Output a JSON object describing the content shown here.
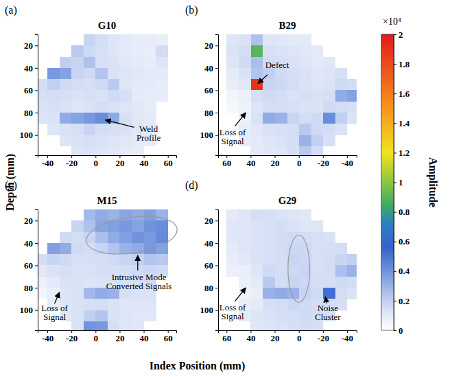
{
  "chart_data": [
    {
      "type": "heatmap",
      "label": "(a)",
      "title": "G10",
      "x": [
        -45,
        -35,
        -25,
        -15,
        -5,
        5,
        15,
        25,
        35,
        45,
        55,
        65
      ],
      "y": [
        15,
        25,
        35,
        45,
        55,
        65,
        75,
        85,
        95,
        105,
        115
      ],
      "values": [
        [
          null,
          null,
          null,
          null,
          1800,
          1500,
          1200,
          1000,
          900,
          900,
          800,
          null
        ],
        [
          null,
          null,
          null,
          2200,
          1600,
          1400,
          1200,
          1000,
          900,
          800,
          1500,
          null
        ],
        [
          null,
          null,
          2000,
          1800,
          2500,
          1400,
          1300,
          1100,
          1000,
          900,
          1200,
          null
        ],
        [
          null,
          3800,
          3500,
          1800,
          1600,
          2400,
          1300,
          1200,
          1100,
          1000,
          1000,
          null
        ],
        [
          1500,
          2000,
          1600,
          1500,
          1400,
          1600,
          2200,
          1200,
          1000,
          1000,
          900,
          null
        ],
        [
          1400,
          1500,
          1400,
          1300,
          1400,
          1300,
          1600,
          1400,
          1000,
          900,
          900,
          null
        ],
        [
          1300,
          1400,
          1300,
          1200,
          1300,
          1500,
          1300,
          1200,
          1100,
          900,
          null,
          null
        ],
        [
          1200,
          1300,
          3200,
          3500,
          3800,
          4200,
          3300,
          1400,
          1100,
          1000,
          null,
          null
        ],
        [
          null,
          1200,
          1300,
          1400,
          1800,
          1500,
          1400,
          1300,
          1100,
          1000,
          null,
          null
        ],
        [
          null,
          null,
          1200,
          1300,
          1400,
          1300,
          1200,
          1100,
          1000,
          900,
          null,
          null
        ],
        [
          null,
          null,
          null,
          1200,
          1300,
          1200,
          1100,
          1000,
          900,
          null,
          null,
          null
        ]
      ],
      "xlim": [
        -48,
        67
      ],
      "ylim": [
        10,
        118
      ],
      "xticks": [
        -40,
        -20,
        0,
        20,
        40,
        60
      ],
      "yticks": [
        20,
        40,
        60,
        80,
        100
      ],
      "annotations": [
        "Weld Profile"
      ]
    },
    {
      "type": "heatmap",
      "label": "(b)",
      "title": "B29",
      "x": [
        -45,
        -35,
        -25,
        -15,
        -5,
        5,
        15,
        25,
        35,
        45,
        55,
        65
      ],
      "y": [
        15,
        25,
        35,
        45,
        55,
        65,
        75,
        85,
        95,
        105,
        115
      ],
      "values": [
        [
          null,
          null,
          null,
          null,
          1000,
          1000,
          1100,
          1200,
          2500,
          1300,
          1200,
          null
        ],
        [
          null,
          null,
          null,
          1000,
          1100,
          1200,
          1300,
          1400,
          9000,
          1500,
          1300,
          null
        ],
        [
          null,
          null,
          1100,
          1000,
          1200,
          1300,
          1400,
          1500,
          2600,
          1600,
          1200,
          null
        ],
        [
          null,
          1400,
          1200,
          1100,
          1300,
          1400,
          1600,
          2000,
          2400,
          1300,
          1000,
          null
        ],
        [
          1500,
          1600,
          1300,
          1200,
          1300,
          1500,
          1700,
          1800,
          19000,
          1100,
          800,
          null
        ],
        [
          3500,
          3200,
          1400,
          1300,
          1400,
          1300,
          1500,
          1600,
          1400,
          700,
          500,
          null
        ],
        [
          1400,
          1500,
          1600,
          1300,
          1300,
          1400,
          1500,
          1500,
          1200,
          600,
          400,
          null
        ],
        [
          1300,
          2000,
          4200,
          1600,
          1500,
          1800,
          3000,
          3200,
          1300,
          700,
          null,
          null
        ],
        [
          null,
          1300,
          1500,
          1600,
          2200,
          1500,
          1400,
          1300,
          1100,
          900,
          null,
          null
        ],
        [
          null,
          null,
          1400,
          2000,
          3000,
          1500,
          1300,
          1200,
          1000,
          900,
          null,
          null
        ],
        [
          null,
          null,
          null,
          1500,
          2200,
          1400,
          1200,
          1100,
          1000,
          null,
          null,
          null
        ]
      ],
      "xlim": [
        67,
        -48
      ],
      "ylim": [
        10,
        118
      ],
      "xticks": [
        60,
        40,
        20,
        0,
        -20,
        -40
      ],
      "yticks": [
        20,
        40,
        60,
        80,
        100
      ],
      "annotations": [
        "Defect",
        "Loss of Signal"
      ]
    },
    {
      "type": "heatmap",
      "label": "(c)",
      "title": "M15",
      "x": [
        -45,
        -35,
        -25,
        -15,
        -5,
        5,
        15,
        25,
        35,
        45,
        55,
        65
      ],
      "y": [
        15,
        25,
        35,
        45,
        55,
        65,
        75,
        85,
        95,
        105,
        115
      ],
      "values": [
        [
          null,
          null,
          null,
          null,
          2800,
          3200,
          3000,
          3400,
          3200,
          3600,
          3000,
          null
        ],
        [
          null,
          null,
          null,
          1800,
          2500,
          3400,
          3600,
          3800,
          3500,
          4000,
          4200,
          null
        ],
        [
          null,
          null,
          1600,
          1500,
          1800,
          2600,
          3200,
          3600,
          4000,
          3800,
          4300,
          null
        ],
        [
          null,
          3600,
          3200,
          1600,
          1500,
          1800,
          2400,
          3000,
          3200,
          3800,
          3500,
          null
        ],
        [
          1500,
          1800,
          1600,
          1400,
          1400,
          1500,
          1600,
          1800,
          2000,
          2400,
          2200,
          null
        ],
        [
          1100,
          1300,
          1400,
          1300,
          1300,
          1400,
          1400,
          1500,
          1600,
          1700,
          1600,
          null
        ],
        [
          700,
          1000,
          1300,
          1300,
          1200,
          1300,
          1300,
          1400,
          1400,
          1500,
          null,
          null
        ],
        [
          500,
          800,
          1200,
          1300,
          2800,
          3200,
          3000,
          1400,
          1300,
          1300,
          null,
          null
        ],
        [
          null,
          900,
          1200,
          1300,
          1400,
          1500,
          1300,
          1200,
          1200,
          1200,
          null,
          null
        ],
        [
          null,
          null,
          1100,
          1300,
          2000,
          2400,
          1300,
          1200,
          1100,
          1100,
          null,
          null
        ],
        [
          null,
          null,
          null,
          1300,
          4000,
          3800,
          1400,
          1200,
          1100,
          null,
          null,
          null
        ]
      ],
      "xlim": [
        -48,
        67
      ],
      "ylim": [
        10,
        118
      ],
      "xticks": [
        -40,
        -20,
        0,
        20,
        40,
        60
      ],
      "yticks": [
        20,
        40,
        60,
        80,
        100
      ],
      "annotations": [
        "Loss of Signal",
        "Intrusive Mode Converted Signals"
      ]
    },
    {
      "type": "heatmap",
      "label": "(d)",
      "title": "G29",
      "x": [
        -45,
        -35,
        -25,
        -15,
        -5,
        5,
        15,
        25,
        35,
        45,
        55,
        65
      ],
      "y": [
        15,
        25,
        35,
        45,
        55,
        65,
        75,
        85,
        95,
        105,
        115
      ],
      "values": [
        [
          null,
          null,
          null,
          null,
          1100,
          1200,
          1300,
          1400,
          1500,
          1200,
          1000,
          null
        ],
        [
          null,
          null,
          null,
          1200,
          1200,
          1300,
          1500,
          1400,
          1300,
          1200,
          1100,
          null
        ],
        [
          null,
          null,
          1300,
          1400,
          1500,
          1600,
          1500,
          1400,
          1300,
          1200,
          1100,
          null
        ],
        [
          null,
          1500,
          1400,
          1400,
          1700,
          1700,
          1500,
          1400,
          1300,
          1200,
          1000,
          null
        ],
        [
          2000,
          1800,
          1500,
          1400,
          1700,
          1800,
          1500,
          1400,
          1300,
          1100,
          900,
          null
        ],
        [
          3000,
          2600,
          1500,
          1400,
          1800,
          1700,
          1500,
          1600,
          1200,
          800,
          700,
          null
        ],
        [
          1500,
          1600,
          1500,
          1500,
          1700,
          1800,
          1500,
          2200,
          1000,
          700,
          null,
          null
        ],
        [
          1300,
          1500,
          5200,
          1600,
          1800,
          3000,
          3200,
          3000,
          800,
          600,
          null,
          null
        ],
        [
          null,
          1400,
          1500,
          1500,
          1600,
          1700,
          1500,
          1400,
          1000,
          800,
          null,
          null
        ],
        [
          null,
          null,
          1400,
          1500,
          1600,
          1500,
          1400,
          1300,
          1200,
          1000,
          null,
          null
        ],
        [
          null,
          null,
          null,
          1400,
          1500,
          1400,
          1300,
          1200,
          1100,
          null,
          null,
          null
        ]
      ],
      "xlim": [
        67,
        -48
      ],
      "ylim": [
        10,
        118
      ],
      "xticks": [
        60,
        40,
        20,
        0,
        -20,
        -40
      ],
      "yticks": [
        20,
        40,
        60,
        80,
        100
      ],
      "annotations": [
        "Loss of Signal",
        "Noise Cluster"
      ]
    }
  ],
  "figure": {
    "xlabel": "Index Position (mm)",
    "ylabel": "Depth (mm)",
    "colorbar": {
      "label": "Amplitude",
      "multiplier": "×10⁴",
      "range": [
        0,
        20000
      ],
      "ticks": [
        0,
        {
          "value": 2000,
          "label": "0.2"
        },
        {
          "value": 4000,
          "label": "0.4"
        },
        {
          "value": 6000,
          "label": "0.6"
        },
        {
          "value": 8000,
          "label": "0.8"
        },
        {
          "value": 10000,
          "label": "1"
        },
        {
          "value": 12000,
          "label": "1.2"
        },
        {
          "value": 14000,
          "label": "1.4"
        },
        {
          "value": 16000,
          "label": "1.6"
        },
        {
          "value": 18000,
          "label": "1.8"
        },
        {
          "value": 20000,
          "label": "2"
        }
      ]
    }
  }
}
